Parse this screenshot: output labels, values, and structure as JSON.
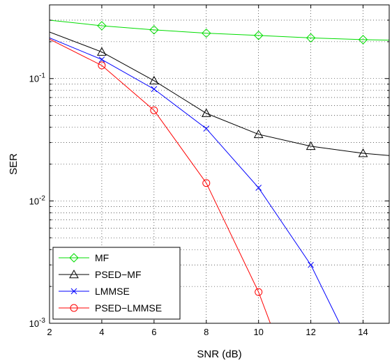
{
  "chart_data": {
    "type": "line",
    "xlabel": "SNR (dB)",
    "ylabel": "SER",
    "xlim": [
      2,
      15
    ],
    "ylim": [
      0.001,
      0.4
    ],
    "yscale": "log",
    "grid": true,
    "legend_position": "bottom-left",
    "x_ticks": [
      {
        "value": 2,
        "label": "2"
      },
      {
        "value": 4,
        "label": "4"
      },
      {
        "value": 6,
        "label": "6"
      },
      {
        "value": 8,
        "label": "8"
      },
      {
        "value": 10,
        "label": "10"
      },
      {
        "value": 12,
        "label": "12"
      },
      {
        "value": 14,
        "label": "14"
      }
    ],
    "y_ticks": [
      {
        "value": 0.001,
        "base": "10",
        "exp": "-3"
      },
      {
        "value": 0.01,
        "base": "10",
        "exp": "-2"
      },
      {
        "value": 0.1,
        "base": "10",
        "exp": "-1"
      }
    ],
    "series": [
      {
        "name": "MF",
        "color": "#00dd00",
        "marker": "diamond",
        "x": [
          2,
          4,
          6,
          8,
          10,
          12,
          14,
          15
        ],
        "y": [
          0.3,
          0.27,
          0.25,
          0.235,
          0.225,
          0.215,
          0.208,
          0.206
        ],
        "marker_x": [
          4,
          6,
          8,
          10,
          12,
          14
        ]
      },
      {
        "name": "PSED−MF",
        "color": "#000000",
        "marker": "triangle",
        "x": [
          2,
          4,
          6,
          8,
          10,
          12,
          14,
          15
        ],
        "y": [
          0.24,
          0.165,
          0.096,
          0.052,
          0.035,
          0.028,
          0.0245,
          0.0235
        ],
        "marker_x": [
          4,
          6,
          8,
          10,
          12,
          14
        ]
      },
      {
        "name": "LMMSE",
        "color": "#0000ff",
        "marker": "x",
        "x": [
          2,
          4,
          6,
          8,
          10,
          12,
          13.1
        ],
        "y": [
          0.215,
          0.143,
          0.082,
          0.039,
          0.0128,
          0.003,
          0.001
        ],
        "marker_x": [
          4,
          6,
          8,
          10,
          12
        ]
      },
      {
        "name": "PSED−LMMSE",
        "color": "#ff0000",
        "marker": "circle",
        "x": [
          2,
          4,
          6,
          8,
          10,
          10.45
        ],
        "y": [
          0.21,
          0.128,
          0.055,
          0.014,
          0.0018,
          0.001
        ],
        "marker_x": [
          4,
          6,
          8,
          10
        ]
      }
    ]
  }
}
